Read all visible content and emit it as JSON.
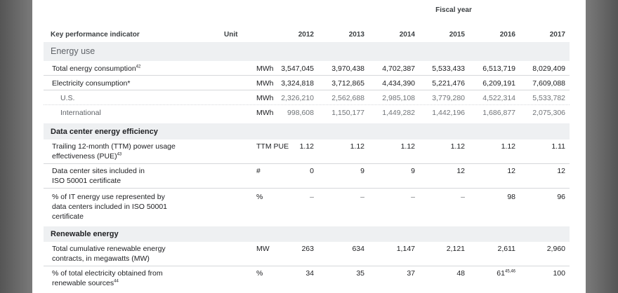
{
  "table": {
    "fiscal_year_label": "Fiscal year",
    "headers": {
      "indicator": "Key performance indicator",
      "unit": "Unit",
      "years": [
        "2012",
        "2013",
        "2014",
        "2015",
        "2016",
        "2017"
      ]
    },
    "sections": {
      "energy_use": "Energy use",
      "dc_efficiency": "Data center energy efficiency",
      "renewable": "Renewable energy"
    },
    "rows": {
      "total_energy": {
        "label": "Total energy consumption",
        "note": "42",
        "unit": "MWh",
        "values": [
          "3,547,045",
          "3,970,438",
          "4,702,387",
          "5,533,433",
          "6,513,719",
          "8,029,409"
        ]
      },
      "electricity": {
        "label": "Electricity consumption*",
        "unit": "MWh",
        "values": [
          "3,324,818",
          "3,712,865",
          "4,434,390",
          "5,221,476",
          "6,209,191",
          "7,609,088"
        ]
      },
      "us": {
        "label": "U.S.",
        "unit": "MWh",
        "values": [
          "2,326,210",
          "2,562,688",
          "2,985,108",
          "3,779,280",
          "4,522,314",
          "5,533,782"
        ]
      },
      "international": {
        "label": "International",
        "unit": "MWh",
        "values": [
          "998,608",
          "1,150,177",
          "1,449,282",
          "1,442,196",
          "1,686,877",
          "2,075,306"
        ]
      },
      "pue": {
        "label_line1": "Trailing 12-month (TTM) power usage",
        "label_line2": "effectiveness (PUE)",
        "note": "43",
        "unit": "TTM PUE",
        "values": [
          "1.12",
          "1.12",
          "1.12",
          "1.12",
          "1.12",
          "1.11"
        ]
      },
      "iso_sites": {
        "label_line1": "Data center sites included in",
        "label_line2": "ISO 50001 certificate",
        "unit": "#",
        "values": [
          "0",
          "9",
          "9",
          "12",
          "12",
          "12"
        ]
      },
      "iso_pct": {
        "label_line1": "% of IT energy use represented by",
        "label_line2": "data centers included in ISO 50001",
        "label_line3": "certificate",
        "unit": "%",
        "values": [
          "–",
          "–",
          "–",
          "–",
          "98",
          "96"
        ]
      },
      "renew_contracts": {
        "label_line1": "Total cumulative renewable energy",
        "label_line2": "contracts, in megawatts (MW)",
        "unit": "MW",
        "values": [
          "263",
          "634",
          "1,147",
          "2,121",
          "2,611",
          "2,960"
        ]
      },
      "renew_pct": {
        "label_line1": "% of total electricity obtained from",
        "label_line2": "renewable sources",
        "note": "44",
        "unit": "%",
        "values": [
          "34",
          "35",
          "37",
          "48",
          "61",
          "100"
        ],
        "value_2016_note": "45,46"
      }
    }
  }
}
